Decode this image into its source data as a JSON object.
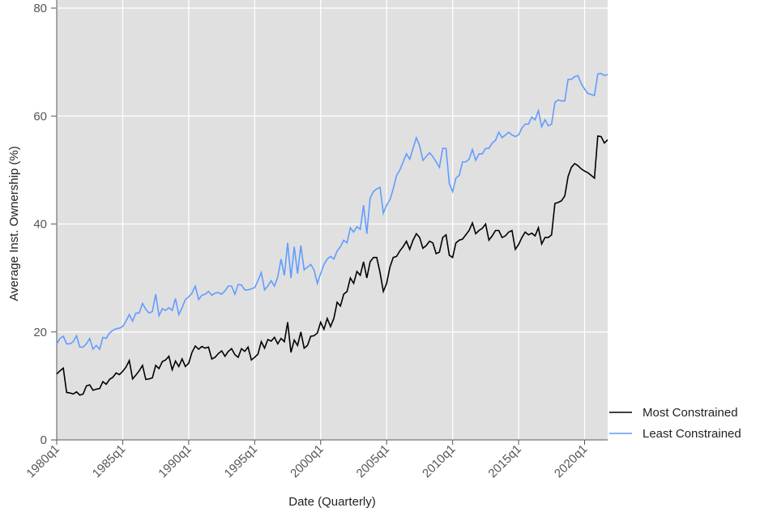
{
  "chart_data": {
    "type": "line",
    "x_label": "Date (Quarterly)",
    "y_label": "Average Inst. Ownership (%)",
    "categories": [
      "1980q1",
      null,
      null,
      null,
      null,
      null,
      null,
      null,
      null,
      null,
      null,
      null,
      null,
      null,
      null,
      null,
      null,
      null,
      null,
      null,
      "1985q1",
      null,
      null,
      null,
      null,
      null,
      null,
      null,
      null,
      null,
      null,
      null,
      null,
      null,
      null,
      null,
      null,
      null,
      null,
      null,
      "1990q1",
      null,
      null,
      null,
      null,
      null,
      null,
      null,
      null,
      null,
      null,
      null,
      null,
      null,
      null,
      null,
      null,
      null,
      null,
      null,
      "1995q1",
      null,
      null,
      null,
      null,
      null,
      null,
      null,
      null,
      null,
      null,
      null,
      null,
      null,
      null,
      null,
      null,
      null,
      null,
      null,
      "2000q1",
      null,
      null,
      null,
      null,
      null,
      null,
      null,
      null,
      null,
      null,
      null,
      null,
      null,
      null,
      null,
      null,
      null,
      null,
      null,
      "2005q1",
      null,
      null,
      null,
      null,
      null,
      null,
      null,
      null,
      null,
      null,
      null,
      null,
      null,
      null,
      null,
      null,
      null,
      null,
      null,
      "2010q1",
      null,
      null,
      null,
      null,
      null,
      null,
      null,
      null,
      null,
      null,
      null,
      null,
      null,
      null,
      null,
      null,
      null,
      null,
      null,
      "2015q1",
      null,
      null,
      null,
      null,
      null,
      null,
      null,
      null,
      null,
      null,
      null,
      null,
      null,
      null,
      null,
      null,
      null,
      null,
      null,
      "2020q1",
      null,
      null,
      null,
      null,
      null,
      null,
      null
    ],
    "series": [
      {
        "name": "Most Constrained",
        "color": "#000000",
        "values": [
          12.2,
          12.8,
          13.3,
          8.8,
          8.7,
          8.5,
          8.9,
          8.3,
          8.5,
          10.0,
          10.2,
          9.2,
          9.4,
          9.5,
          10.8,
          10.3,
          11.2,
          11.6,
          12.4,
          12.1,
          12.7,
          13.5,
          14.7,
          11.3,
          12.0,
          12.8,
          13.8,
          11.2,
          11.3,
          11.5,
          13.8,
          13.2,
          14.5,
          14.8,
          15.5,
          13.0,
          14.6,
          13.6,
          15.0,
          13.6,
          14.2,
          16.2,
          17.4,
          16.8,
          17.3,
          17.0,
          17.2,
          15.0,
          15.3,
          16.0,
          16.5,
          15.5,
          16.4,
          16.9,
          15.8,
          15.3,
          16.9,
          16.4,
          17.2,
          14.8,
          15.3,
          15.9,
          18.2,
          17.0,
          18.6,
          18.3,
          19.0,
          17.8,
          18.8,
          18.2,
          21.8,
          16.2,
          18.5,
          17.5,
          20.0,
          17.0,
          17.5,
          19.2,
          19.3,
          19.8,
          21.8,
          20.5,
          22.5,
          21.0,
          22.5,
          25.5,
          24.8,
          27.0,
          27.5,
          30.0,
          29.0,
          31.2,
          30.5,
          33.0,
          30.0,
          33.0,
          33.8,
          33.8,
          31.0,
          27.5,
          29.0,
          32.0,
          33.8,
          34.0,
          35.0,
          35.8,
          36.8,
          35.3,
          37.0,
          38.2,
          37.5,
          35.5,
          36.0,
          36.8,
          36.5,
          34.5,
          34.8,
          37.5,
          38.0,
          34.2,
          33.8,
          36.5,
          37.0,
          37.2,
          38.0,
          38.8,
          40.2,
          38.2,
          38.8,
          39.2,
          40.0,
          37.0,
          37.8,
          38.8,
          38.8,
          37.5,
          37.8,
          38.5,
          38.8,
          35.3,
          36.2,
          37.5,
          38.5,
          38.0,
          38.3,
          37.8,
          39.3,
          36.3,
          37.5,
          37.5,
          38.0,
          43.8,
          44.0,
          44.3,
          45.2,
          48.8,
          50.5,
          51.2,
          50.8,
          50.2,
          49.8,
          49.5,
          49.0,
          48.5,
          56.3,
          56.2,
          55.0,
          55.6
        ]
      },
      {
        "name": "Least Constrained",
        "color": "#619cff",
        "values": [
          17.8,
          18.8,
          19.2,
          17.8,
          17.8,
          18.2,
          19.3,
          17.2,
          17.2,
          17.8,
          18.8,
          16.8,
          17.5,
          16.8,
          19.0,
          18.8,
          19.8,
          20.3,
          20.6,
          20.7,
          21.0,
          22.0,
          23.2,
          22.0,
          23.5,
          23.5,
          25.3,
          24.2,
          23.5,
          23.8,
          27.0,
          23.0,
          24.3,
          24.0,
          24.5,
          24.0,
          26.2,
          23.2,
          24.5,
          26.0,
          26.5,
          27.2,
          28.5,
          26.0,
          26.8,
          27.0,
          27.5,
          26.8,
          27.2,
          27.3,
          27.0,
          27.6,
          28.5,
          28.5,
          27.0,
          28.8,
          28.7,
          27.8,
          27.8,
          28.0,
          28.2,
          29.5,
          31.0,
          27.8,
          28.5,
          29.5,
          28.5,
          30.2,
          33.5,
          30.5,
          36.5,
          30.0,
          35.8,
          30.8,
          36.0,
          31.5,
          32.0,
          32.5,
          31.5,
          29.0,
          30.8,
          32.5,
          33.5,
          34.0,
          33.5,
          35.0,
          35.8,
          37.0,
          36.5,
          39.3,
          38.5,
          39.5,
          39.0,
          43.5,
          38.2,
          44.8,
          46.0,
          46.5,
          46.8,
          42.0,
          43.5,
          44.5,
          46.5,
          49.0,
          50.0,
          51.5,
          53.0,
          52.0,
          54.0,
          56.0,
          54.5,
          51.8,
          52.5,
          53.2,
          52.5,
          51.5,
          50.5,
          54.0,
          54.0,
          47.5,
          46.0,
          48.5,
          49.0,
          51.5,
          51.5,
          52.0,
          53.8,
          51.8,
          53.0,
          53.0,
          54.0,
          54.0,
          55.0,
          55.5,
          57.0,
          56.0,
          56.5,
          57.0,
          56.5,
          56.2,
          56.5,
          57.8,
          58.5,
          58.5,
          59.8,
          59.3,
          61.0,
          58.0,
          59.3,
          58.2,
          58.5,
          62.5,
          63.0,
          62.8,
          62.8,
          66.8,
          66.8,
          67.3,
          67.5,
          66.0,
          65.0,
          64.2,
          64.0,
          63.8,
          67.8,
          67.9,
          67.5,
          67.7
        ]
      }
    ],
    "ylim": [
      0,
      80
    ],
    "yticks": [
      0,
      20,
      40,
      60,
      80
    ],
    "grid": true,
    "legend": "bottom-right"
  }
}
